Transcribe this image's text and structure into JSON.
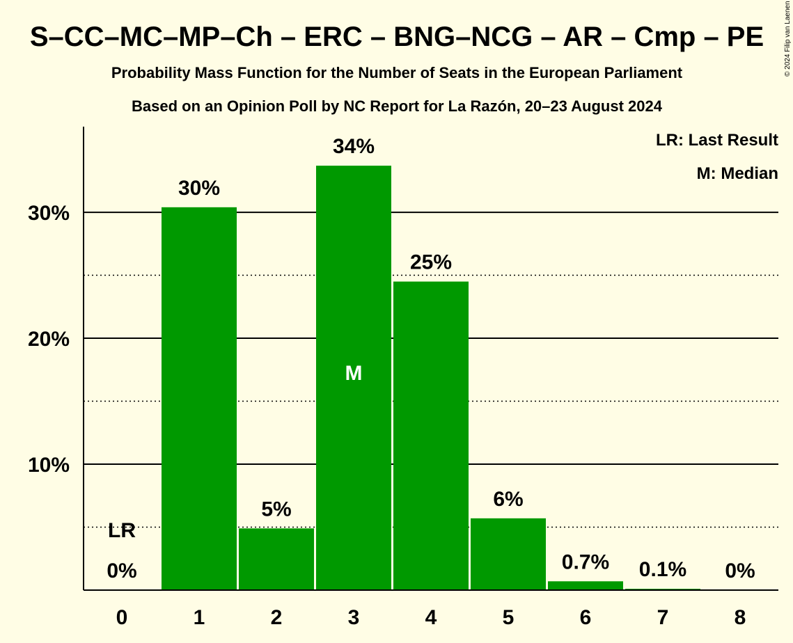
{
  "chart_data": {
    "type": "bar",
    "title": "S–CC–MC–MP–Ch – ERC – BNG–NCG – AR – Cmp – PE",
    "subtitle": "Probability Mass Function for the Number of Seats in the European Parliament",
    "subtitle2": "Based on an Opinion Poll by NC Report for La Razón, 20–23 August 2024",
    "copyright": "© 2024 Filip van Laenen",
    "categories": [
      "0",
      "1",
      "2",
      "3",
      "4",
      "5",
      "6",
      "7",
      "8"
    ],
    "values": [
      0,
      30.4,
      4.9,
      33.7,
      24.5,
      5.7,
      0.7,
      0.1,
      0
    ],
    "labels": [
      "0%",
      "30%",
      "5%",
      "34%",
      "25%",
      "6%",
      "0.7%",
      "0.1%",
      "0%"
    ],
    "ylim": [
      0,
      36.8
    ],
    "yticks_major": [
      10,
      20,
      30
    ],
    "yticks_major_labels": [
      "10%",
      "20%",
      "30%"
    ],
    "yticks_minor": [
      5,
      15,
      25
    ],
    "last_result_index": 0,
    "last_result_label": "LR",
    "median_index": 3,
    "median_label": "M",
    "legend": [
      "LR: Last Result",
      "M: Median"
    ],
    "legend_position": "top-right",
    "bar_color": "#009900",
    "background_color": "#fffde5",
    "grid": true
  }
}
